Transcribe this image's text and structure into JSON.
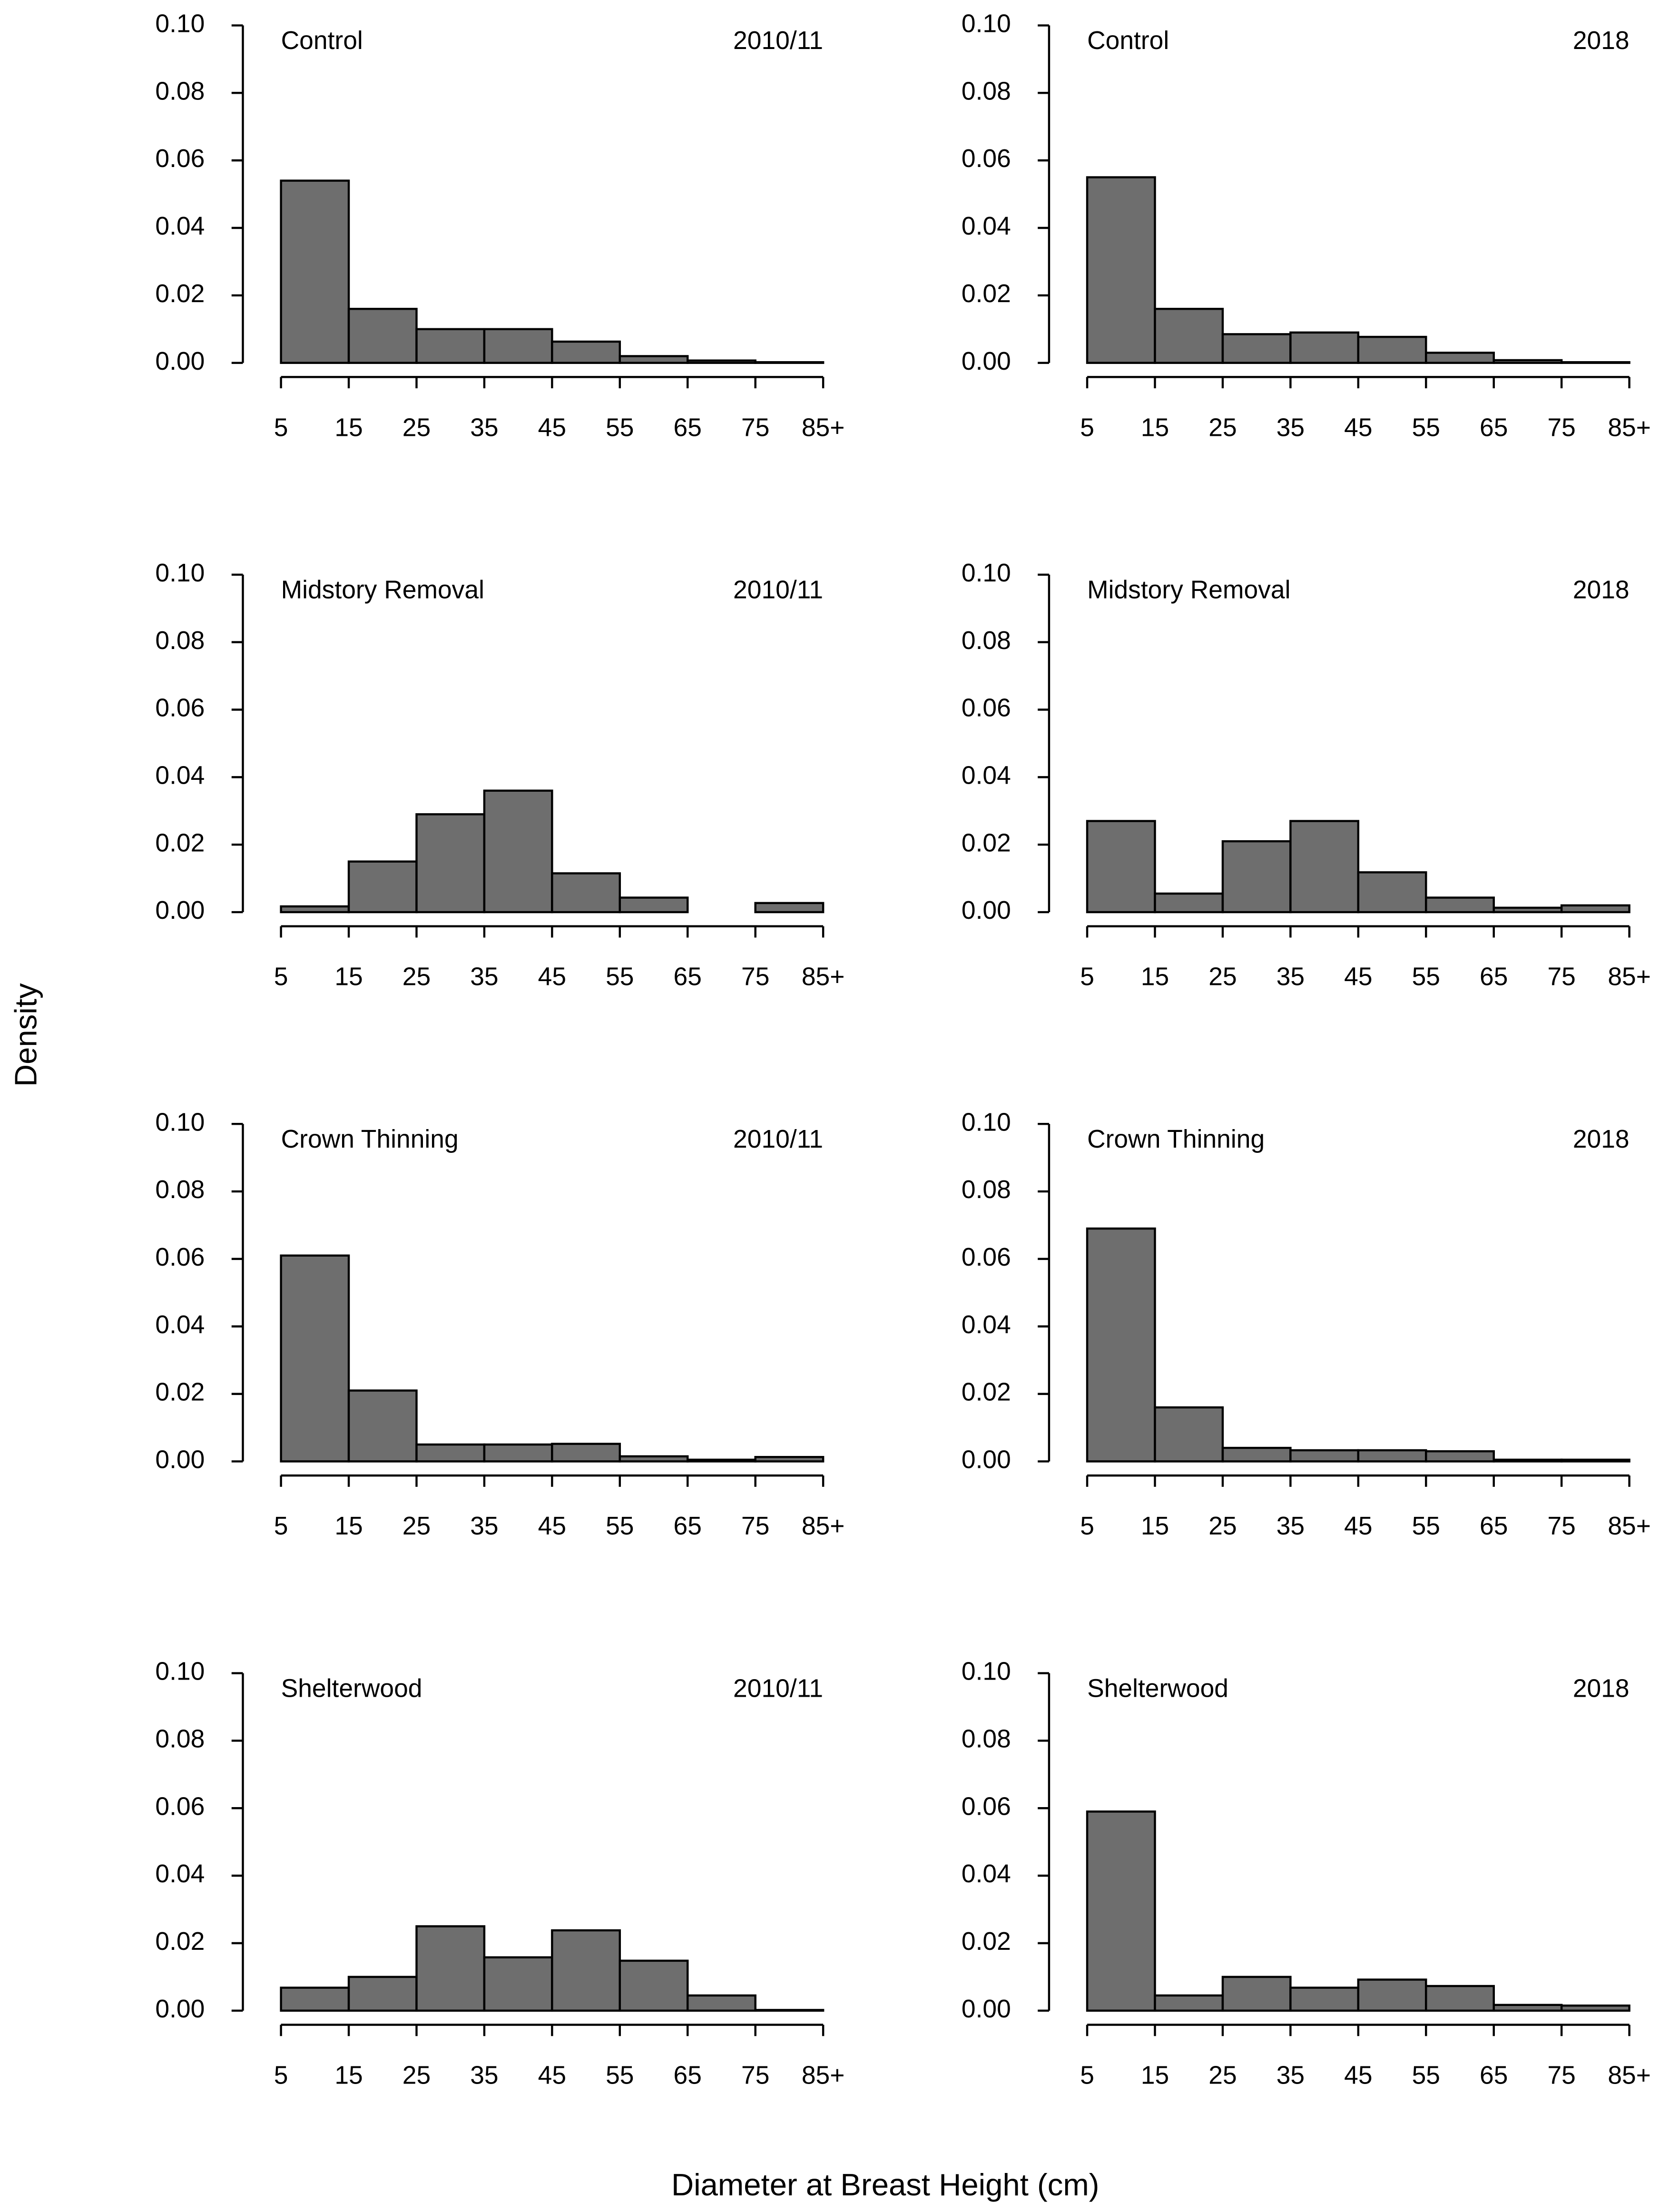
{
  "y_label": "Density",
  "x_label": "Diameter at Breast Height (cm)",
  "chart_data": [
    {
      "type": "histogram",
      "title": "Control",
      "subtitle": "2010/11",
      "color": "#6e6e6e",
      "bins": [
        5,
        15,
        25,
        35,
        45,
        55,
        65,
        75,
        85
      ],
      "values": [
        0.054,
        0.016,
        0.01,
        0.01,
        0.0063,
        0.002,
        0.0007,
        0.0002
      ],
      "xlim": [
        5,
        85
      ],
      "xticks": [
        5,
        15,
        25,
        35,
        45,
        55,
        65,
        75,
        {
          "value": 85,
          "label": "85+"
        }
      ],
      "ylim": [
        0,
        0.1
      ],
      "yticks": [
        {
          "value": 0,
          "label": "0.00"
        },
        {
          "value": 0.02,
          "label": "0.02"
        },
        {
          "value": 0.04,
          "label": "0.04"
        },
        {
          "value": 0.06,
          "label": "0.06"
        },
        {
          "value": 0.08,
          "label": "0.08"
        },
        {
          "value": 0.1,
          "label": "0.10"
        }
      ]
    },
    {
      "type": "histogram",
      "title": "Control",
      "subtitle": "2018",
      "color": "#6e6e6e",
      "bins": [
        5,
        15,
        25,
        35,
        45,
        55,
        65,
        75,
        85
      ],
      "values": [
        0.055,
        0.016,
        0.0085,
        0.009,
        0.0077,
        0.003,
        0.0008,
        0.0002
      ],
      "xlim": [
        5,
        85
      ],
      "xticks": [
        5,
        15,
        25,
        35,
        45,
        55,
        65,
        75,
        {
          "value": 85,
          "label": "85+"
        }
      ],
      "ylim": [
        0,
        0.1
      ],
      "yticks": [
        {
          "value": 0,
          "label": "0.00"
        },
        {
          "value": 0.02,
          "label": "0.02"
        },
        {
          "value": 0.04,
          "label": "0.04"
        },
        {
          "value": 0.06,
          "label": "0.06"
        },
        {
          "value": 0.08,
          "label": "0.08"
        },
        {
          "value": 0.1,
          "label": "0.10"
        }
      ]
    },
    {
      "type": "histogram",
      "title": "Midstory Removal",
      "subtitle": "2010/11",
      "color": "#6e6e6e",
      "bins": [
        5,
        15,
        25,
        35,
        45,
        55,
        65,
        75,
        85
      ],
      "values": [
        0.0017,
        0.015,
        0.029,
        0.036,
        0.0115,
        0.0043,
        0,
        0.0027
      ],
      "xlim": [
        5,
        85
      ],
      "xticks": [
        5,
        15,
        25,
        35,
        45,
        55,
        65,
        75,
        {
          "value": 85,
          "label": "85+"
        }
      ],
      "ylim": [
        0,
        0.1
      ],
      "yticks": [
        {
          "value": 0,
          "label": "0.00"
        },
        {
          "value": 0.02,
          "label": "0.02"
        },
        {
          "value": 0.04,
          "label": "0.04"
        },
        {
          "value": 0.06,
          "label": "0.06"
        },
        {
          "value": 0.08,
          "label": "0.08"
        },
        {
          "value": 0.1,
          "label": "0.10"
        }
      ]
    },
    {
      "type": "histogram",
      "title": "Midstory Removal",
      "subtitle": "2018",
      "color": "#6e6e6e",
      "bins": [
        5,
        15,
        25,
        35,
        45,
        55,
        65,
        75,
        85
      ],
      "values": [
        0.027,
        0.0055,
        0.021,
        0.027,
        0.0118,
        0.0043,
        0.0013,
        0.002
      ],
      "xlim": [
        5,
        85
      ],
      "xticks": [
        5,
        15,
        25,
        35,
        45,
        55,
        65,
        75,
        {
          "value": 85,
          "label": "85+"
        }
      ],
      "ylim": [
        0,
        0.1
      ],
      "yticks": [
        {
          "value": 0,
          "label": "0.00"
        },
        {
          "value": 0.02,
          "label": "0.02"
        },
        {
          "value": 0.04,
          "label": "0.04"
        },
        {
          "value": 0.06,
          "label": "0.06"
        },
        {
          "value": 0.08,
          "label": "0.08"
        },
        {
          "value": 0.1,
          "label": "0.10"
        }
      ]
    },
    {
      "type": "histogram",
      "title": "Crown Thinning",
      "subtitle": "2010/11",
      "color": "#6e6e6e",
      "bins": [
        5,
        15,
        25,
        35,
        45,
        55,
        65,
        75,
        85
      ],
      "values": [
        0.061,
        0.021,
        0.005,
        0.005,
        0.0052,
        0.0015,
        0.0005,
        0.0013
      ],
      "xlim": [
        5,
        85
      ],
      "xticks": [
        5,
        15,
        25,
        35,
        45,
        55,
        65,
        75,
        {
          "value": 85,
          "label": "85+"
        }
      ],
      "ylim": [
        0,
        0.1
      ],
      "yticks": [
        {
          "value": 0,
          "label": "0.00"
        },
        {
          "value": 0.02,
          "label": "0.02"
        },
        {
          "value": 0.04,
          "label": "0.04"
        },
        {
          "value": 0.06,
          "label": "0.06"
        },
        {
          "value": 0.08,
          "label": "0.08"
        },
        {
          "value": 0.1,
          "label": "0.10"
        }
      ]
    },
    {
      "type": "histogram",
      "title": "Crown Thinning",
      "subtitle": "2018",
      "color": "#6e6e6e",
      "bins": [
        5,
        15,
        25,
        35,
        45,
        55,
        65,
        75,
        85
      ],
      "values": [
        0.069,
        0.016,
        0.004,
        0.0033,
        0.0033,
        0.003,
        0.0005,
        0.0005
      ],
      "xlim": [
        5,
        85
      ],
      "xticks": [
        5,
        15,
        25,
        35,
        45,
        55,
        65,
        75,
        {
          "value": 85,
          "label": "85+"
        }
      ],
      "ylim": [
        0,
        0.1
      ],
      "yticks": [
        {
          "value": 0,
          "label": "0.00"
        },
        {
          "value": 0.02,
          "label": "0.02"
        },
        {
          "value": 0.04,
          "label": "0.04"
        },
        {
          "value": 0.06,
          "label": "0.06"
        },
        {
          "value": 0.08,
          "label": "0.08"
        },
        {
          "value": 0.1,
          "label": "0.10"
        }
      ]
    },
    {
      "type": "histogram",
      "title": "Shelterwood",
      "subtitle": "2010/11",
      "color": "#6e6e6e",
      "bins": [
        5,
        15,
        25,
        35,
        45,
        55,
        65,
        75,
        85
      ],
      "values": [
        0.0068,
        0.01,
        0.025,
        0.0158,
        0.0238,
        0.0148,
        0.0045,
        0.0002
      ],
      "xlim": [
        5,
        85
      ],
      "xticks": [
        5,
        15,
        25,
        35,
        45,
        55,
        65,
        75,
        {
          "value": 85,
          "label": "85+"
        }
      ],
      "ylim": [
        0,
        0.1
      ],
      "yticks": [
        {
          "value": 0,
          "label": "0.00"
        },
        {
          "value": 0.02,
          "label": "0.02"
        },
        {
          "value": 0.04,
          "label": "0.04"
        },
        {
          "value": 0.06,
          "label": "0.06"
        },
        {
          "value": 0.08,
          "label": "0.08"
        },
        {
          "value": 0.1,
          "label": "0.10"
        }
      ]
    },
    {
      "type": "histogram",
      "title": "Shelterwood",
      "subtitle": "2018",
      "color": "#6e6e6e",
      "bins": [
        5,
        15,
        25,
        35,
        45,
        55,
        65,
        75,
        85
      ],
      "values": [
        0.059,
        0.0045,
        0.01,
        0.0068,
        0.0092,
        0.0073,
        0.0017,
        0.0015
      ],
      "xlim": [
        5,
        85
      ],
      "xticks": [
        5,
        15,
        25,
        35,
        45,
        55,
        65,
        75,
        {
          "value": 85,
          "label": "85+"
        }
      ],
      "ylim": [
        0,
        0.1
      ],
      "yticks": [
        {
          "value": 0,
          "label": "0.00"
        },
        {
          "value": 0.02,
          "label": "0.02"
        },
        {
          "value": 0.04,
          "label": "0.04"
        },
        {
          "value": 0.06,
          "label": "0.06"
        },
        {
          "value": 0.08,
          "label": "0.08"
        },
        {
          "value": 0.1,
          "label": "0.10"
        }
      ]
    }
  ]
}
